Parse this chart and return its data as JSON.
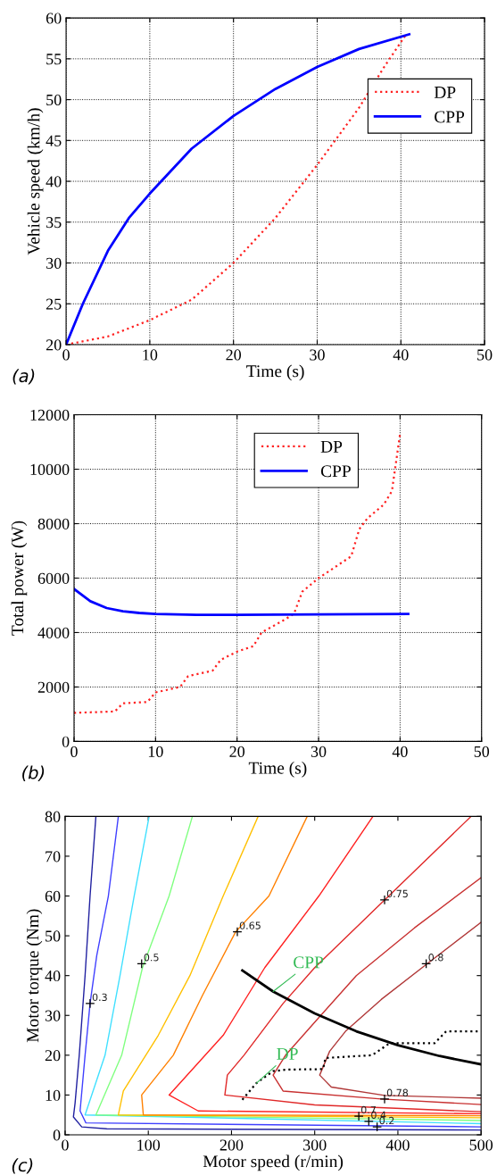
{
  "chart_data": [
    {
      "type": "line",
      "xlabel": "Time (s)",
      "ylabel": "Vehicle speed (km/h)",
      "xlim": [
        0,
        50
      ],
      "ylim": [
        20,
        60
      ],
      "xticks": [
        0,
        10,
        20,
        30,
        40,
        50
      ],
      "yticks": [
        20,
        25,
        30,
        35,
        40,
        45,
        50,
        55,
        60
      ],
      "grid": true,
      "legend": "top right",
      "annotations": [
        "(a)"
      ],
      "series": [
        {
          "name": "DP",
          "color": "#ff2020",
          "line_style": "dotted",
          "x": [
            0,
            5,
            10,
            15,
            20,
            25,
            30,
            35,
            38,
            40.5
          ],
          "values": [
            20,
            21,
            23,
            25.5,
            30,
            35.5,
            42,
            49,
            54,
            57.8
          ]
        },
        {
          "name": "CPP",
          "color": "#0000ff",
          "line_style": "solid",
          "x": [
            0,
            2,
            5,
            7.5,
            10,
            15,
            20,
            25,
            30,
            35,
            41
          ],
          "values": [
            20,
            25,
            31.5,
            35.5,
            38.5,
            44,
            48,
            51.3,
            54,
            56.2,
            58
          ]
        }
      ]
    },
    {
      "type": "line",
      "xlabel": "Time (s)",
      "ylabel": "Total power (W)",
      "xlim": [
        0,
        50
      ],
      "ylim": [
        0,
        12000
      ],
      "xticks": [
        0,
        10,
        20,
        30,
        40,
        50
      ],
      "yticks": [
        0,
        2000,
        4000,
        6000,
        8000,
        10000,
        12000
      ],
      "grid": true,
      "legend": "top",
      "annotations": [
        "(b)"
      ],
      "series": [
        {
          "name": "DP",
          "color": "#ff2020",
          "line_style": "dotted",
          "x": [
            0,
            5,
            6,
            9,
            10,
            13,
            14,
            17,
            18,
            20,
            22,
            23,
            26,
            27,
            28,
            30,
            34,
            35,
            36,
            38,
            39,
            40
          ],
          "values": [
            1050,
            1100,
            1400,
            1450,
            1800,
            2000,
            2400,
            2600,
            3000,
            3300,
            3500,
            4000,
            4500,
            4700,
            5500,
            6000,
            6800,
            7800,
            8200,
            8700,
            9200,
            11300
          ]
        },
        {
          "name": "CPP",
          "color": "#0000ff",
          "line_style": "solid",
          "x": [
            0,
            2,
            4,
            6,
            8,
            10,
            15,
            20,
            30,
            41
          ],
          "values": [
            5600,
            5150,
            4900,
            4780,
            4720,
            4680,
            4650,
            4650,
            4670,
            4680
          ]
        }
      ]
    },
    {
      "type": "line",
      "xlabel": "Motor speed (r/min)",
      "ylabel": "Motor torque (Nm)",
      "xlim": [
        0,
        500
      ],
      "ylim": [
        0,
        80
      ],
      "xticks": [
        0,
        100,
        200,
        300,
        400,
        500
      ],
      "yticks": [
        0,
        10,
        20,
        30,
        40,
        50,
        60,
        70,
        80
      ],
      "grid": false,
      "annotations": [
        "(c)",
        {
          "text": "0.3",
          "x": 30,
          "y": 33
        },
        {
          "text": "0.5",
          "x": 92,
          "y": 43
        },
        {
          "text": "0.65",
          "x": 207,
          "y": 51
        },
        {
          "text": "0.75",
          "x": 384,
          "y": 59
        },
        {
          "text": "0.8",
          "x": 434,
          "y": 43
        },
        {
          "text": "0.78",
          "x": 384,
          "y": 9
        },
        {
          "text": "0.7",
          "x": 353,
          "y": 4.7
        },
        {
          "text": "0.4",
          "x": 365,
          "y": 3.4
        },
        {
          "text": "0.2",
          "x": 375,
          "y": 2
        }
      ],
      "series": [
        {
          "color": "#2020a0",
          "line_style": "solid",
          "x": [
            37,
            30,
            24,
            17,
            12,
            10,
            20,
            50,
            500
          ],
          "values": [
            80,
            60,
            40,
            20,
            8,
            4.5,
            2,
            1.5,
            1.2
          ]
        },
        {
          "color": "#4040ff",
          "line_style": "solid",
          "x": [
            64,
            52,
            38,
            30,
            24,
            18,
            25,
            500
          ],
          "values": [
            80,
            60,
            45,
            33,
            20,
            6,
            3,
            2
          ]
        },
        {
          "color": "#40e0ff",
          "line_style": "solid",
          "x": [
            101,
            83,
            66,
            48,
            24,
            500
          ],
          "values": [
            80,
            60,
            40,
            20,
            5,
            2.8
          ]
        },
        {
          "color": "#80ff80",
          "line_style": "solid",
          "x": [
            153,
            125,
            93,
            68,
            37,
            500
          ],
          "values": [
            80,
            60,
            42,
            20,
            5,
            3.6
          ]
        },
        {
          "color": "#ffc000",
          "line_style": "solid",
          "x": [
            232,
            190,
            150,
            112,
            70,
            64,
            500
          ],
          "values": [
            80,
            60,
            40,
            25,
            11,
            5,
            4.3
          ]
        },
        {
          "color": "#ff8000",
          "line_style": "solid",
          "x": [
            291,
            245,
            205,
            165,
            130,
            92,
            94,
            500
          ],
          "values": [
            80,
            60,
            51,
            35,
            20,
            10,
            5,
            4.8
          ]
        },
        {
          "color": "#ff2020",
          "line_style": "solid",
          "x": [
            370,
            305,
            240,
            190,
            125,
            160,
            500
          ],
          "values": [
            80,
            60,
            42,
            25,
            10,
            6,
            5.3
          ]
        },
        {
          "color": "#e02828",
          "line_style": "solid",
          "x": [
            488,
            384,
            300,
            262,
            215,
            195,
            192,
            300,
            500
          ],
          "values": [
            80,
            59,
            42,
            33,
            20,
            15,
            10,
            7.5,
            5.8
          ]
        },
        {
          "color": "#c83030",
          "line_style": "solid",
          "x": [
            500,
            420,
            350,
            303,
            265,
            250,
            262,
            380,
            500
          ],
          "values": [
            64.6,
            52,
            40,
            29,
            20,
            15,
            11,
            9,
            7.6
          ]
        },
        {
          "color": "#b03838",
          "line_style": "solid",
          "x": [
            500,
            434,
            380,
            337,
            318,
            306,
            320,
            384,
            500
          ],
          "values": [
            53.4,
            42.8,
            34,
            26,
            21,
            15,
            12,
            9.9,
            9.2
          ]
        },
        {
          "name": "CPP",
          "color": "#000000",
          "line_style": "solid",
          "x": [
            213,
            250,
            300,
            350,
            400,
            450,
            500
          ],
          "values": [
            41.3,
            36,
            30.5,
            26,
            22.5,
            19.8,
            17.7
          ]
        },
        {
          "name": "DP",
          "color": "#000000",
          "line_style": "dotted",
          "x": [
            213,
            230,
            250,
            268,
            310,
            313,
            369,
            390,
            444,
            458,
            500
          ],
          "values": [
            8.8,
            13,
            16,
            16.4,
            16.5,
            19.3,
            20,
            23,
            23,
            26,
            26
          ]
        }
      ]
    }
  ]
}
